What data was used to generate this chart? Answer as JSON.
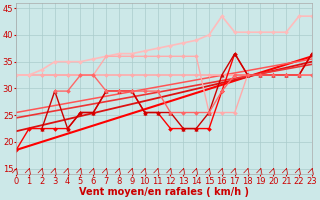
{
  "xlabel": "Vent moyen/en rafales ( km/h )",
  "xlim": [
    0,
    23
  ],
  "ylim": [
    14,
    46
  ],
  "yticks": [
    15,
    20,
    25,
    30,
    35,
    40,
    45
  ],
  "xticks": [
    0,
    1,
    2,
    3,
    4,
    5,
    6,
    7,
    8,
    9,
    10,
    11,
    12,
    13,
    14,
    15,
    16,
    17,
    18,
    19,
    20,
    21,
    22,
    23
  ],
  "bg_color": "#cce8e8",
  "grid_color": "#aacccc",
  "xlabel_color": "#cc0000",
  "xlabel_fontsize": 7,
  "tick_color": "#cc0000",
  "tick_fontsize": 6,
  "series": [
    {
      "x": [
        0,
        23
      ],
      "y": [
        18.5,
        36.0
      ],
      "color": "#ff0000",
      "lw": 1.5,
      "marker": null,
      "ms": 0
    },
    {
      "x": [
        0,
        23
      ],
      "y": [
        22.0,
        35.0
      ],
      "color": "#dd1111",
      "lw": 1.3,
      "marker": null,
      "ms": 0
    },
    {
      "x": [
        0,
        23
      ],
      "y": [
        24.5,
        34.5
      ],
      "color": "#ee3333",
      "lw": 1.2,
      "marker": null,
      "ms": 0
    },
    {
      "x": [
        0,
        23
      ],
      "y": [
        25.5,
        35.5
      ],
      "color": "#ff5555",
      "lw": 1.1,
      "marker": null,
      "ms": 0
    },
    {
      "x": [
        0,
        1,
        2,
        3,
        4,
        5,
        6,
        7,
        8,
        9,
        10,
        11,
        12,
        13,
        14,
        15,
        16,
        17,
        18,
        19,
        20,
        21,
        22,
        23
      ],
      "y": [
        32.5,
        32.5,
        32.5,
        32.5,
        32.5,
        32.5,
        32.5,
        32.5,
        32.5,
        32.5,
        32.5,
        32.5,
        32.5,
        32.5,
        32.5,
        32.5,
        32.5,
        32.5,
        32.5,
        32.5,
        32.5,
        32.5,
        32.5,
        32.5
      ],
      "color": "#ffaaaa",
      "lw": 1.2,
      "marker": "D",
      "ms": 2.0
    },
    {
      "x": [
        0,
        1,
        2,
        3,
        4,
        5,
        6,
        7,
        8,
        9,
        10,
        11,
        12,
        13,
        14,
        15,
        16,
        17,
        18,
        19,
        20,
        21,
        22,
        23
      ],
      "y": [
        32.5,
        32.5,
        33.5,
        35.0,
        35.0,
        35.0,
        35.5,
        36.0,
        36.5,
        36.5,
        37.0,
        37.5,
        38.0,
        38.5,
        39.0,
        40.0,
        43.5,
        40.5,
        40.5,
        40.5,
        40.5,
        40.5,
        43.5,
        43.5
      ],
      "color": "#ffbbbb",
      "lw": 1.2,
      "marker": "D",
      "ms": 2.0
    },
    {
      "x": [
        2,
        3,
        4,
        5,
        6,
        7,
        8,
        9,
        10,
        11,
        12,
        13,
        14,
        15,
        16,
        17,
        18,
        19,
        20,
        21,
        22,
        23
      ],
      "y": [
        32.5,
        32.5,
        32.5,
        32.5,
        32.5,
        36.0,
        36.0,
        36.0,
        36.0,
        36.0,
        36.0,
        36.0,
        36.0,
        25.5,
        25.5,
        25.5,
        32.5,
        32.5,
        32.5,
        32.5,
        32.5,
        32.5
      ],
      "color": "#ffaaaa",
      "lw": 1.0,
      "marker": "D",
      "ms": 2.0
    },
    {
      "x": [
        0,
        1,
        2,
        3,
        4,
        5,
        6,
        7,
        8,
        9,
        10,
        11,
        12,
        13,
        14,
        15,
        16,
        17,
        18,
        19,
        20,
        21,
        22,
        23
      ],
      "y": [
        18.5,
        22.5,
        22.5,
        22.5,
        22.5,
        25.5,
        25.5,
        29.5,
        29.5,
        29.5,
        25.5,
        25.5,
        22.5,
        22.5,
        22.5,
        22.5,
        29.5,
        36.5,
        32.5,
        32.5,
        32.5,
        32.5,
        32.5,
        36.5
      ],
      "color": "#ff0000",
      "lw": 1.0,
      "marker": "D",
      "ms": 2.0
    },
    {
      "x": [
        2,
        3,
        4,
        5,
        6,
        7,
        8,
        9,
        10,
        11,
        12,
        13,
        14,
        15,
        16,
        17,
        18,
        19,
        20,
        21,
        22,
        23
      ],
      "y": [
        22.5,
        29.5,
        22.5,
        25.5,
        25.5,
        29.5,
        29.5,
        29.5,
        25.5,
        25.5,
        25.5,
        22.5,
        22.5,
        25.5,
        32.5,
        36.5,
        32.5,
        32.5,
        32.5,
        32.5,
        32.5,
        36.5
      ],
      "color": "#cc0000",
      "lw": 1.0,
      "marker": "^",
      "ms": 2.5
    },
    {
      "x": [
        3,
        4,
        5,
        6,
        7,
        8,
        9,
        10,
        11,
        12,
        13,
        14,
        15,
        16,
        17,
        18,
        19,
        20,
        21,
        22,
        23
      ],
      "y": [
        29.5,
        29.5,
        32.5,
        32.5,
        29.5,
        29.5,
        29.5,
        29.5,
        29.5,
        25.5,
        25.5,
        25.5,
        25.5,
        29.5,
        32.5,
        32.5,
        32.5,
        32.5,
        32.5,
        32.5,
        32.5
      ],
      "color": "#ff6666",
      "lw": 1.0,
      "marker": "D",
      "ms": 2.0
    }
  ],
  "arrow_color": "#cc0000"
}
